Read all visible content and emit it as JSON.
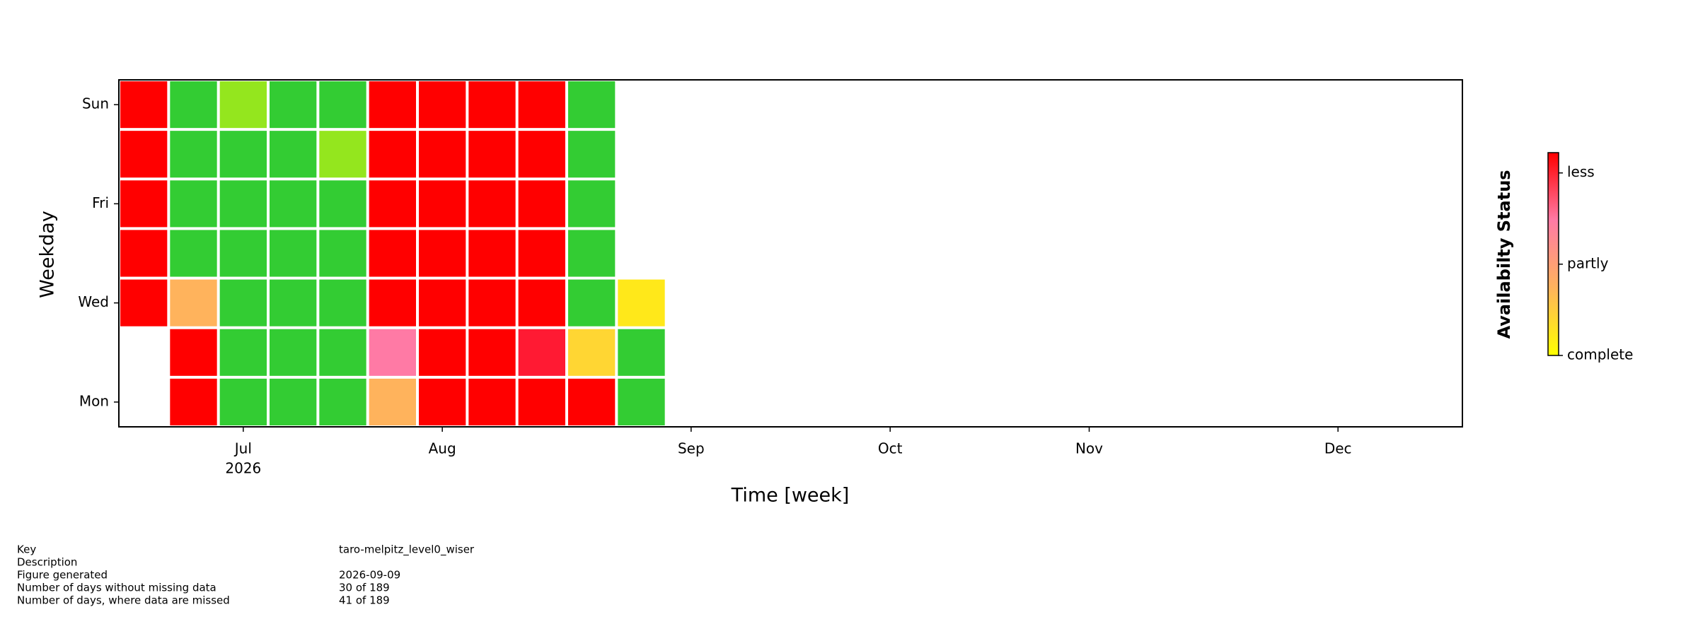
{
  "chart_data": {
    "type": "calendar-heatmap",
    "x_label": "Time [week]",
    "y_label": "Weekday",
    "xlim": [
      0,
      27
    ],
    "xticks": [
      {
        "value": 2.5,
        "label": "Jul"
      },
      {
        "value": 6.5,
        "label": "Aug"
      },
      {
        "value": 11.5,
        "label": "Sep"
      },
      {
        "value": 15.5,
        "label": "Oct"
      },
      {
        "value": 19.5,
        "label": "Nov"
      },
      {
        "value": 24.5,
        "label": "Dec"
      }
    ],
    "year_label": "2026",
    "ylim": [
      -0.5,
      6.5
    ],
    "yticks": [
      {
        "value": 0,
        "label": "Mon"
      },
      {
        "value": 2,
        "label": "Wed"
      },
      {
        "value": 4,
        "label": "Fri"
      },
      {
        "value": 6,
        "label": "Sun"
      }
    ],
    "cell_colors": [
      [
        null,
        null,
        "#ff0000",
        "#ff0000",
        "#ff0000",
        "#ff0000",
        "#ff0000"
      ],
      [
        "#ff0000",
        "#ff0000",
        "#ffb35c",
        "#33cc33",
        "#33cc33",
        "#33cc33",
        "#33cc33"
      ],
      [
        "#33cc33",
        "#33cc33",
        "#33cc33",
        "#33cc33",
        "#33cc33",
        "#33cc33",
        "#94e61e"
      ],
      [
        "#33cc33",
        "#33cc33",
        "#33cc33",
        "#33cc33",
        "#33cc33",
        "#33cc33",
        "#33cc33"
      ],
      [
        "#33cc33",
        "#33cc33",
        "#33cc33",
        "#33cc33",
        "#33cc33",
        "#94e61e",
        "#33cc33"
      ],
      [
        "#ffb35c",
        "#ff7aa5",
        "#ff0000",
        "#ff0000",
        "#ff0000",
        "#ff0000",
        "#ff0000"
      ],
      [
        "#ff0000",
        "#ff0000",
        "#ff0000",
        "#ff0000",
        "#ff0000",
        "#ff0000",
        "#ff0000"
      ],
      [
        "#ff0000",
        "#ff0000",
        "#ff0000",
        "#ff0000",
        "#ff0000",
        "#ff0000",
        "#ff0000"
      ],
      [
        "#ff0000",
        "#ff1a33",
        "#ff0000",
        "#ff0000",
        "#ff0000",
        "#ff0000",
        "#ff0000"
      ],
      [
        "#ff0000",
        "#ffd633",
        "#33cc33",
        "#33cc33",
        "#33cc33",
        "#33cc33",
        "#33cc33"
      ],
      [
        "#33cc33",
        "#33cc33",
        "#ffe81a",
        null,
        null,
        null,
        null
      ]
    ],
    "colorbar": {
      "label": "Availabilty Status",
      "colors": [
        "#ffff00",
        "#ffb35c",
        "#ff7aa5",
        "#ff0000"
      ],
      "lim": [
        0,
        1
      ],
      "ticks": [
        {
          "value": 0,
          "label": "complete"
        },
        {
          "value": 0.45,
          "label": "partly"
        },
        {
          "value": 0.9,
          "label": "less"
        }
      ]
    }
  },
  "info": [
    {
      "label": "Key",
      "value": "taro-melpitz_level0_wiser"
    },
    {
      "label": "Description"
    },
    {
      "label": "Figure generated",
      "value": "2026-09-09"
    },
    {
      "label": "Number of days without missing data",
      "value": "30 of 189"
    },
    {
      "label": "Number of days, where data are missed",
      "value": "41 of 189"
    }
  ]
}
